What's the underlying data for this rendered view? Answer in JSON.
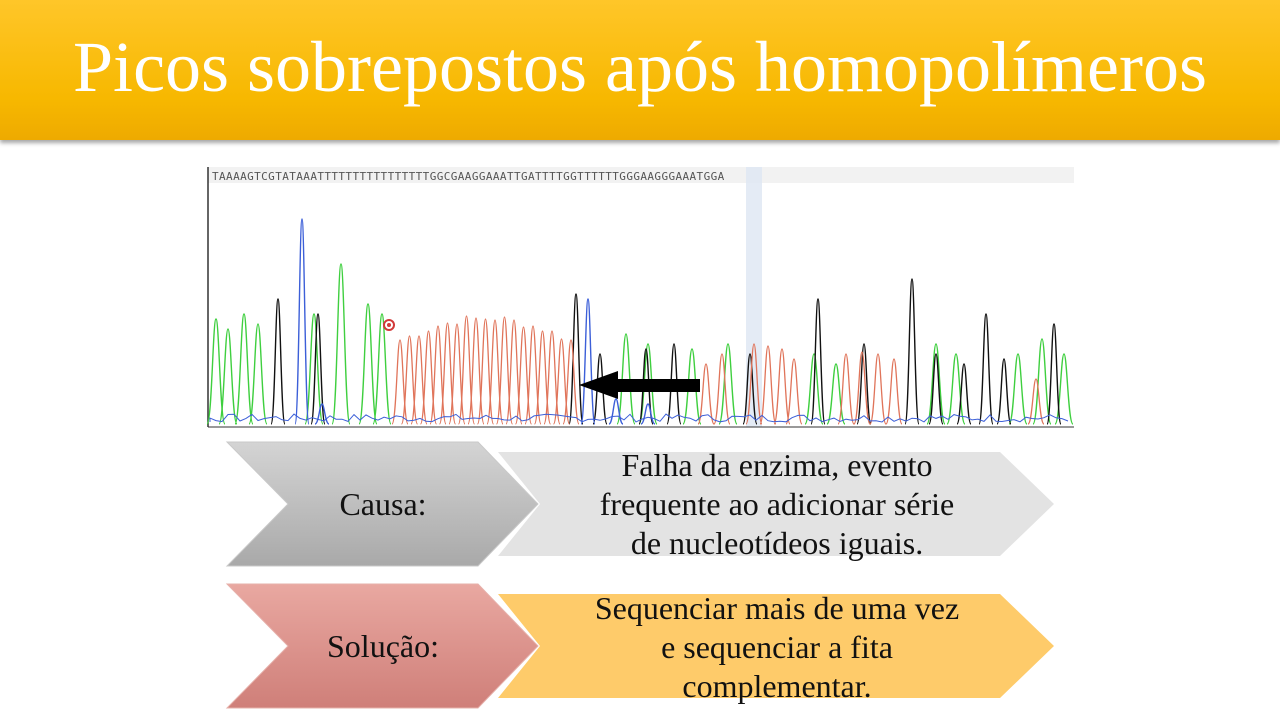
{
  "slide": {
    "title": "Picos sobrepostos após homopolímeros",
    "colors": {
      "title_bar": "#f7b800",
      "causa_chevron": "#bcbcbc",
      "causa_panel": "#e3e3e3",
      "solucao_chevron": "#d98e88",
      "solucao_panel": "#fecb6a",
      "trace_A": "#3fcf3f",
      "trace_C": "#3c5fd8",
      "trace_G": "#111111",
      "trace_T": "#e0745a",
      "arrow": "#000000"
    },
    "rows": [
      {
        "label": "Causa:",
        "text": "Falha da enzima, evento\nfrequente ao adicionar série\nde nucleotídeos iguais."
      },
      {
        "label": "Solução:",
        "text": "Sequenciar mais de uma vez\ne sequenciar a fita\ncomplementar."
      }
    ]
  },
  "chromatogram": {
    "base_calls": "TAAAAGTCGTATAAATTTTTTTTTTTTTTTTGGCGAAGGAAATTGATTTTGGTTTTTTGGGAAGGGAAATGGA",
    "trace_icons": [
      "adenine-trace",
      "cytosine-trace",
      "guanine-trace",
      "thymine-trace"
    ]
  }
}
